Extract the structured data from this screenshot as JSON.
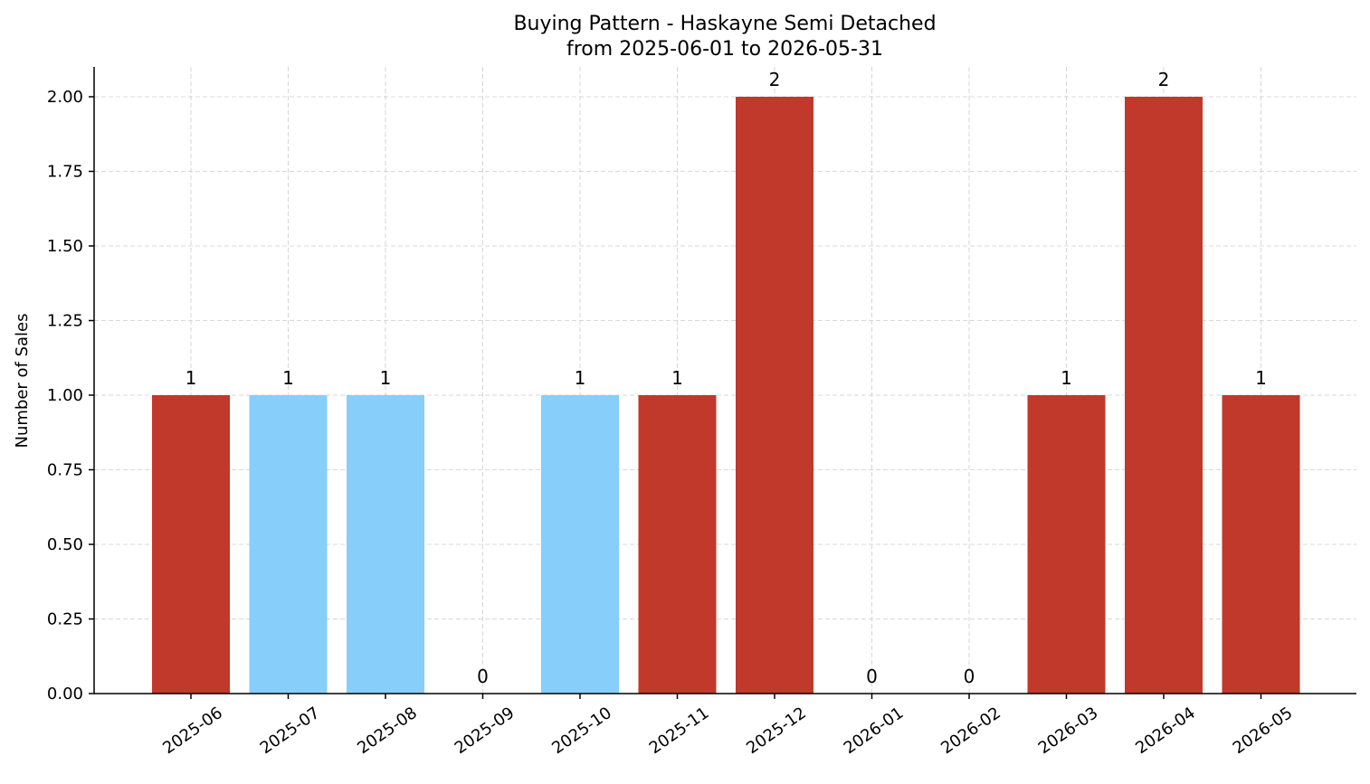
{
  "chart_data": {
    "type": "bar",
    "title": "Buying Pattern - Haskayne Semi Detached",
    "subtitle": "from 2025-06-01 to 2026-05-31",
    "xlabel": "",
    "ylabel": "Number of Sales",
    "categories": [
      "2025-06",
      "2025-07",
      "2025-08",
      "2025-09",
      "2025-10",
      "2025-11",
      "2025-12",
      "2026-01",
      "2026-02",
      "2026-03",
      "2026-04",
      "2026-05"
    ],
    "values": [
      1,
      1,
      1,
      0,
      1,
      1,
      2,
      0,
      0,
      1,
      2,
      1
    ],
    "data_labels": [
      "1",
      "1",
      "1",
      "0",
      "1",
      "1",
      "2",
      "0",
      "0",
      "1",
      "2",
      "1"
    ],
    "bar_colors": [
      "#c0392b",
      "#87cefa",
      "#87cefa",
      "#c0392b",
      "#87cefa",
      "#c0392b",
      "#c0392b",
      "#c0392b",
      "#c0392b",
      "#c0392b",
      "#c0392b",
      "#c0392b"
    ],
    "ylim": [
      0,
      2.1
    ],
    "yticks": [
      0,
      0.25,
      0.5,
      0.75,
      1.0,
      1.25,
      1.5,
      1.75,
      2.0
    ],
    "ytick_labels": [
      "0.00",
      "0.25",
      "0.50",
      "0.75",
      "1.00",
      "1.25",
      "1.50",
      "1.75",
      "2.00"
    ],
    "grid": true,
    "legend": "none"
  }
}
